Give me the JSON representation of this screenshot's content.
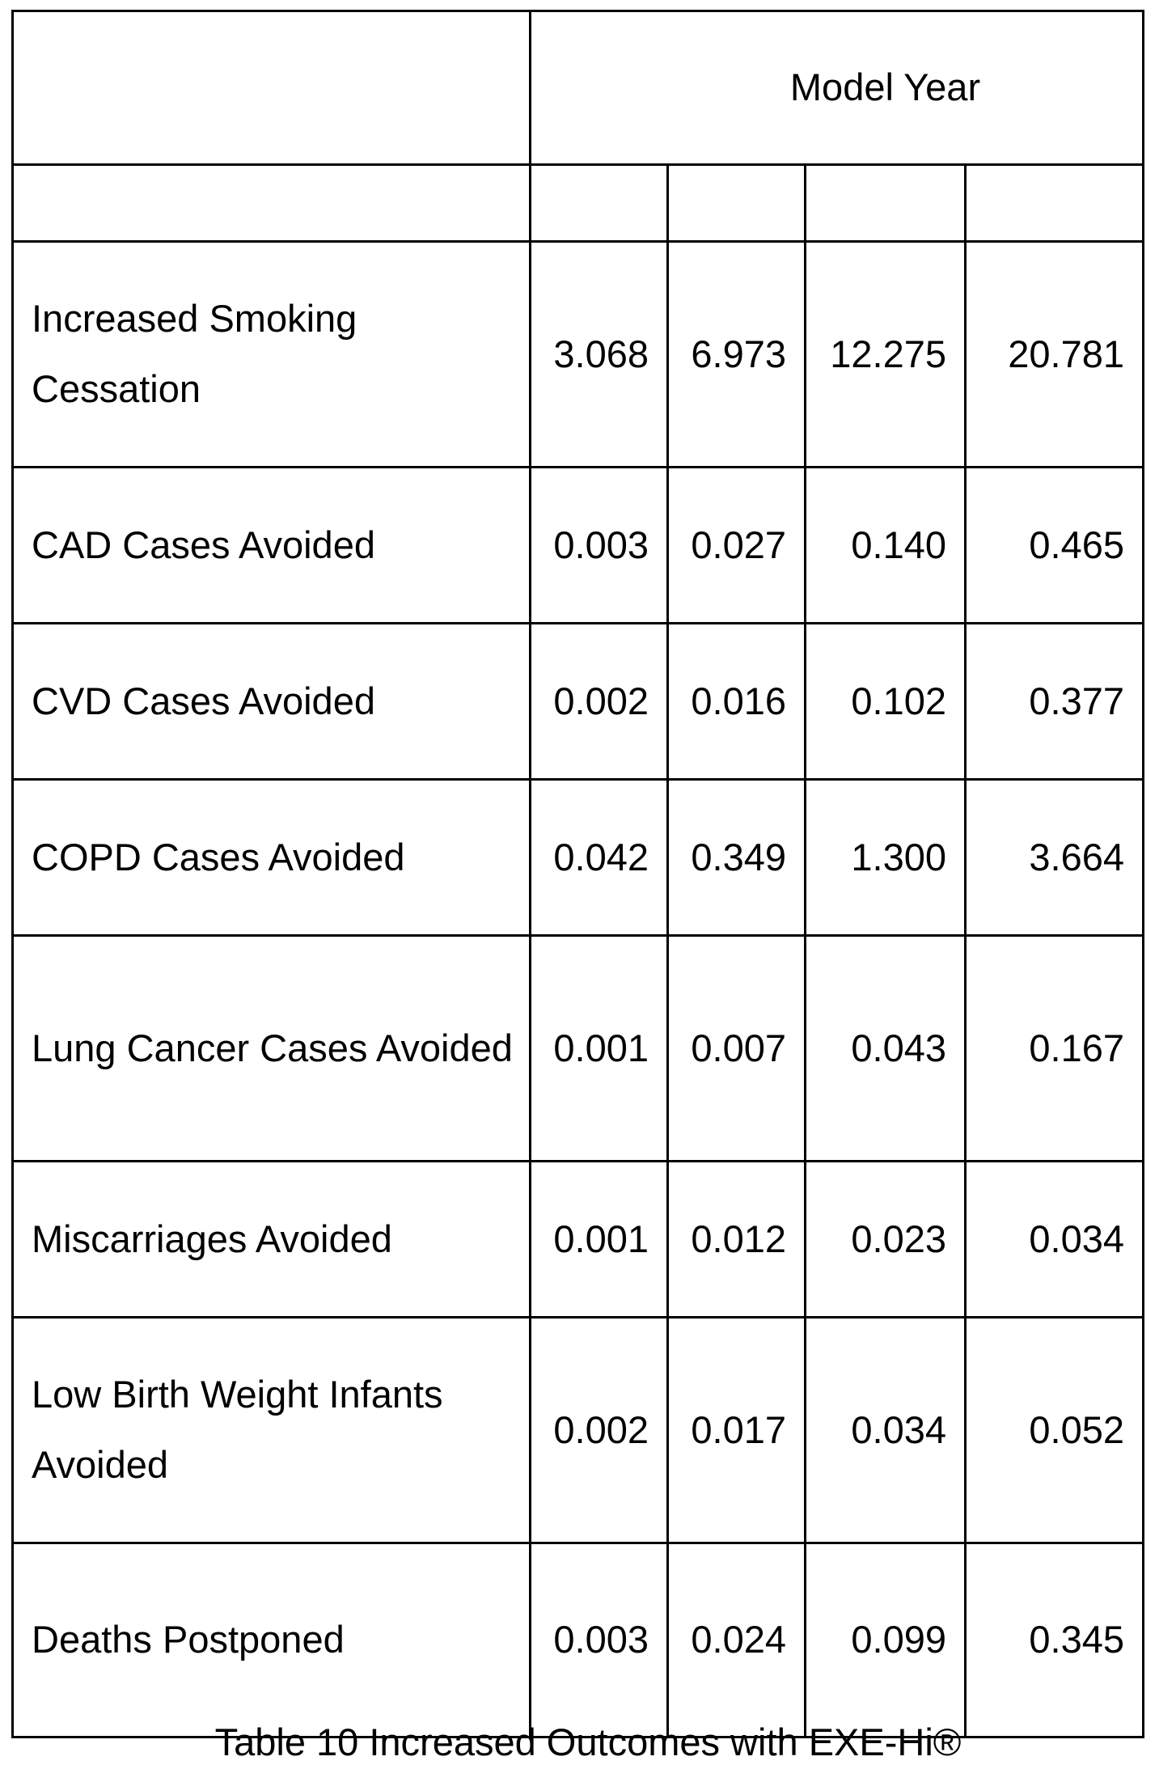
{
  "table": {
    "header": {
      "corner": "",
      "group_label": "Model Year"
    },
    "subheader": [
      "",
      "",
      "",
      "",
      ""
    ],
    "rows": [
      {
        "label": "Increased Smoking Cessation",
        "values": [
          "3.068",
          "6.973",
          "12.275",
          "20.781"
        ]
      },
      {
        "label": "CAD Cases Avoided",
        "values": [
          "0.003",
          "0.027",
          "0.140",
          "0.465"
        ]
      },
      {
        "label": "CVD Cases Avoided",
        "values": [
          "0.002",
          "0.016",
          "0.102",
          "0.377"
        ]
      },
      {
        "label": "COPD Cases Avoided",
        "values": [
          "0.042",
          "0.349",
          "1.300",
          "3.664"
        ]
      },
      {
        "label": "Lung Cancer Cases Avoided",
        "values": [
          "0.001",
          "0.007",
          "0.043",
          "0.167"
        ]
      },
      {
        "label": "Miscarriages Avoided",
        "values": [
          "0.001",
          "0.012",
          "0.023",
          "0.034"
        ]
      },
      {
        "label": "Low Birth Weight Infants Avoided",
        "values": [
          "0.002",
          "0.017",
          "0.034",
          "0.052"
        ]
      },
      {
        "label": "Deaths Postponed",
        "values": [
          "0.003",
          "0.024",
          "0.099",
          "0.345"
        ]
      }
    ]
  },
  "caption": "Table 10 Increased Outcomes with EXE-Hi®"
}
